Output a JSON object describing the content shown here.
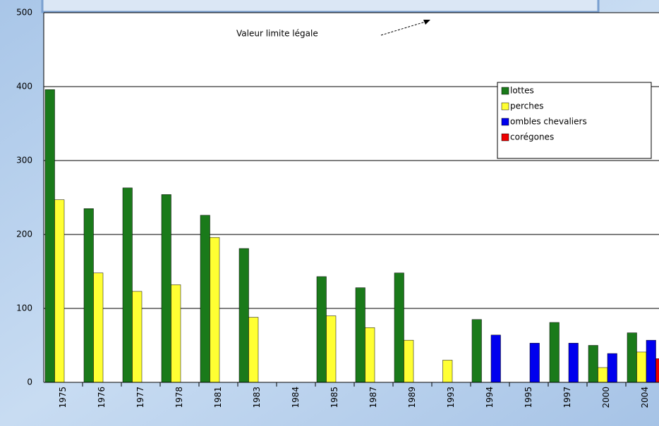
{
  "chart_data": {
    "type": "bar",
    "annotation": "Valeur limite légale",
    "categories": [
      "1975",
      "1976",
      "1977",
      "1978",
      "1981",
      "1983",
      "1984",
      "1985",
      "1987",
      "1989",
      "1993",
      "1994",
      "1995",
      "1997",
      "2000",
      "2004"
    ],
    "series": [
      {
        "name": "lottes",
        "color": "#1a7a1a",
        "values": [
          396,
          235,
          263,
          254,
          226,
          181,
          null,
          143,
          128,
          148,
          null,
          85,
          null,
          81,
          50,
          67
        ]
      },
      {
        "name": "perches",
        "color": "#ffff33",
        "values": [
          247,
          148,
          123,
          132,
          196,
          88,
          null,
          90,
          74,
          57,
          30,
          null,
          null,
          null,
          20,
          41
        ]
      },
      {
        "name": "ombles chevaliers",
        "color": "#0000ee",
        "values": [
          null,
          null,
          null,
          null,
          null,
          null,
          null,
          null,
          null,
          null,
          null,
          64,
          53,
          53,
          39,
          57
        ]
      },
      {
        "name": "corégones",
        "color": "#ee0000",
        "values": [
          null,
          null,
          null,
          null,
          null,
          null,
          null,
          null,
          null,
          null,
          null,
          null,
          null,
          null,
          null,
          32
        ]
      }
    ],
    "ylim": [
      0,
      500
    ],
    "yticks": [
      0,
      100,
      200,
      300,
      400,
      500
    ],
    "grid": true,
    "legend": "upper right"
  }
}
